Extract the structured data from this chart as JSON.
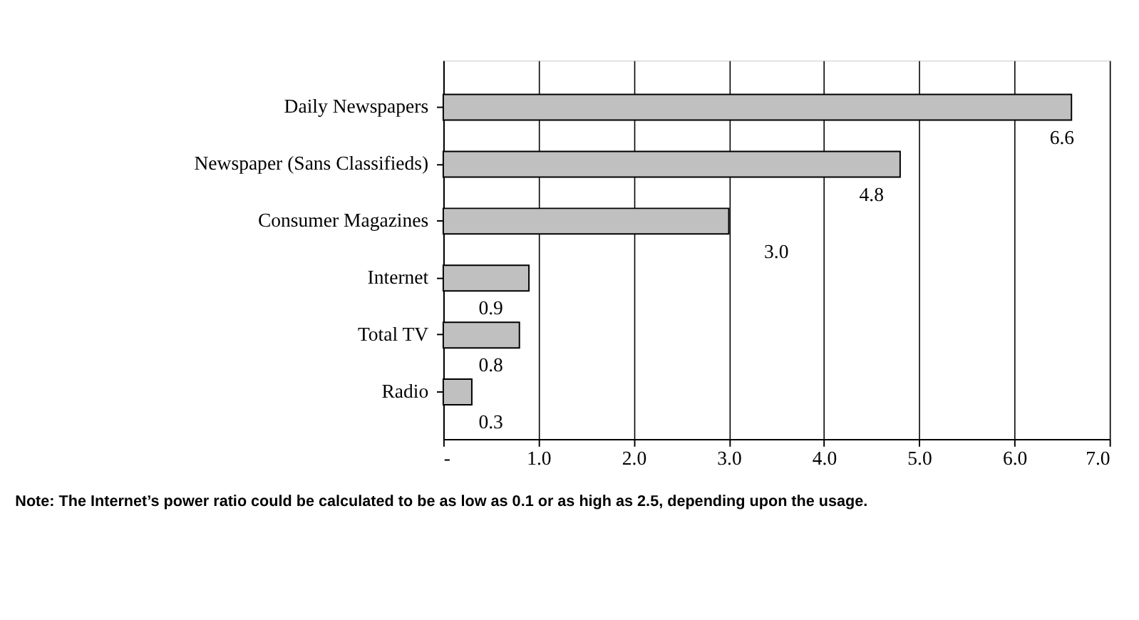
{
  "chart_data": {
    "type": "bar",
    "orientation": "horizontal",
    "categories": [
      "Daily Newspapers",
      "Newspaper (Sans Classifieds)",
      "Consumer Magazines",
      "Internet",
      "Total TV",
      "Radio"
    ],
    "values": [
      6.6,
      4.8,
      3.0,
      0.9,
      0.8,
      0.3
    ],
    "color": "#c0c0c0",
    "value_labels": [
      "6.6",
      "4.8",
      "3.0",
      "0.9",
      "0.8",
      "0.3"
    ],
    "xlim": [
      0,
      7
    ],
    "xticks": [
      {
        "value": 0,
        "label": "-"
      },
      {
        "value": 1,
        "label": "1.0"
      },
      {
        "value": 2,
        "label": "2.0"
      },
      {
        "value": 3,
        "label": "3.0"
      },
      {
        "value": 4,
        "label": "4.0"
      },
      {
        "value": 5,
        "label": "5.0"
      },
      {
        "value": 6,
        "label": "6.0"
      },
      {
        "value": 7,
        "label": "7.0"
      }
    ],
    "grid": "x",
    "annotations": [
      "Note: The Internet’s power ratio could be calculated to be as low as 0.1 or as high as 2.5, depending upon the usage."
    ]
  }
}
